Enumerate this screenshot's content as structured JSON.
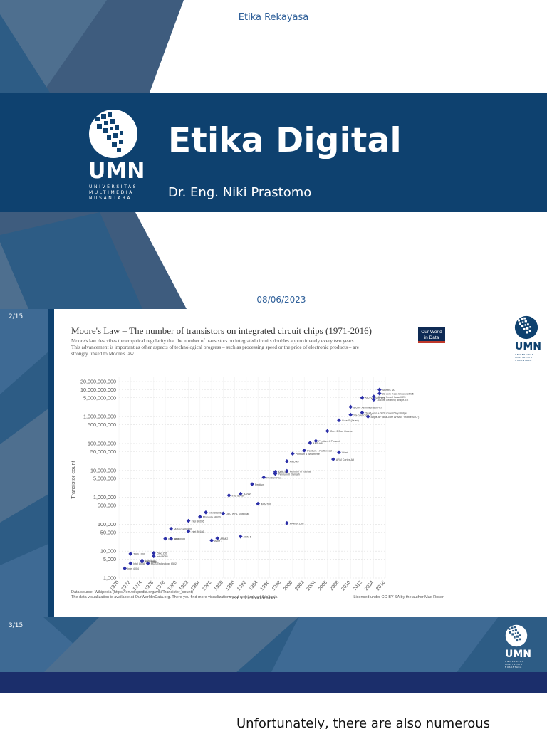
{
  "slide1": {
    "topic": "Etika Rekayasa",
    "title": "Etika Digital",
    "author": "Dr. Eng. Niki Prastomo",
    "date": "08/06/2023",
    "logo": {
      "word": "UMN",
      "line1": "UNIVERSITAS",
      "line2": "MULTIMEDIA",
      "line3": "NUSANTARA"
    }
  },
  "slide2": {
    "page_number": "2/15",
    "logo": {
      "word": "UMN",
      "line1": "UNIVERSITAS",
      "line2": "MULTIMEDIA",
      "line3": "NUSANTARA"
    },
    "badge": {
      "line1": "Our World",
      "line2": "in Data"
    },
    "source_line1": "Data source: Wikipedia (https://en.wikipedia.org/wiki/Transistor_count)",
    "source_line2": "The data visualization is available at OurWorldinData.org. There you find more visualizations and research on this topic.",
    "license": "Licensed under CC-BY-SA by the author Max Roser."
  },
  "slide3": {
    "page_number": "3/15",
    "logo": {
      "word": "UMN",
      "line1": "UNIVERSITAS",
      "line2": "MULTIMEDIA",
      "line3": "NUSANTARA"
    },
    "text": "Unfortunately, there are also numerous"
  },
  "colors": {
    "navy": "#0E416F",
    "steel": "#2D5C85",
    "slate": "#4E6F8F",
    "point": "#2B2FA8",
    "accent": "#C0392B"
  },
  "chart_data": {
    "type": "scatter",
    "title": "Moore's Law – The number of transistors on integrated circuit chips (1971-2016)",
    "subtitle_lines": [
      "Moore's law describes the empirical regularity that the number of transistors on integrated circuits doubles approximately every two years.",
      "This advancement is important as other aspects of technological progress – such as processing speed or the price of electronic products – are",
      "strongly linked to Moore's law."
    ],
    "xlabel": "Year of introduction",
    "ylabel": "Transistor count",
    "yscale": "log",
    "xlim": [
      1970,
      2016
    ],
    "ylim": [
      1000,
      20000000000
    ],
    "x_ticks": [
      1970,
      1972,
      1974,
      1976,
      1978,
      1980,
      1982,
      1984,
      1986,
      1988,
      1990,
      1992,
      1994,
      1996,
      1998,
      2000,
      2002,
      2004,
      2006,
      2008,
      2010,
      2012,
      2014,
      2016
    ],
    "y_ticks": [
      {
        "v": 1000,
        "label": "1,000"
      },
      {
        "v": 5000,
        "label": "5,000"
      },
      {
        "v": 10000,
        "label": "10,000"
      },
      {
        "v": 50000,
        "label": "50,000"
      },
      {
        "v": 100000,
        "label": "100,000"
      },
      {
        "v": 500000,
        "label": "500,000"
      },
      {
        "v": 1000000,
        "label": "1,000,000"
      },
      {
        "v": 5000000,
        "label": "5,000,000"
      },
      {
        "v": 10000000,
        "label": "10,000,000"
      },
      {
        "v": 50000000,
        "label": "50,000,000"
      },
      {
        "v": 100000000,
        "label": "100,000,000"
      },
      {
        "v": 500000000,
        "label": "500,000,000"
      },
      {
        "v": 1000000000,
        "label": "1,000,000,000"
      },
      {
        "v": 5000000000,
        "label": "5,000,000,000"
      },
      {
        "v": 10000000000,
        "label": "10,000,000,000"
      },
      {
        "v": 20000000000,
        "label": "20,000,000,000"
      }
    ],
    "grid": true,
    "points": [
      {
        "x": 1971,
        "y": 2300,
        "label": "Intel 4004"
      },
      {
        "x": 1972,
        "y": 3500,
        "label": "Intel 8008"
      },
      {
        "x": 1972,
        "y": 8000,
        "label": "TMS 1000"
      },
      {
        "x": 1974,
        "y": 4500,
        "label": "Intel 8080"
      },
      {
        "x": 1974,
        "y": 4100,
        "label": "RCA 1802"
      },
      {
        "x": 1975,
        "y": 3510,
        "label": "MOS Technology 6502"
      },
      {
        "x": 1976,
        "y": 8500,
        "label": "Zilog Z80"
      },
      {
        "x": 1976,
        "y": 6500,
        "label": "Intel 8085"
      },
      {
        "x": 1978,
        "y": 29000,
        "label": "Intel 8086"
      },
      {
        "x": 1979,
        "y": 68000,
        "label": "Motorola 68000"
      },
      {
        "x": 1979,
        "y": 29000,
        "label": "Intel 8088"
      },
      {
        "x": 1982,
        "y": 55000,
        "label": "Intel 80186"
      },
      {
        "x": 1982,
        "y": 134000,
        "label": "Intel 80286"
      },
      {
        "x": 1984,
        "y": 190000,
        "label": "Motorola 68020"
      },
      {
        "x": 1985,
        "y": 275000,
        "label": "Intel 80386"
      },
      {
        "x": 1986,
        "y": 25000,
        "label": "ARM 1"
      },
      {
        "x": 1987,
        "y": 30000,
        "label": "ARM 2"
      },
      {
        "x": 1988,
        "y": 250000,
        "label": "DEC WRL MultiTitan"
      },
      {
        "x": 1989,
        "y": 1180000,
        "label": "Intel 80486"
      },
      {
        "x": 1991,
        "y": 35000,
        "label": "ARM 6"
      },
      {
        "x": 1991,
        "y": 1350000,
        "label": "R4000"
      },
      {
        "x": 1993,
        "y": 3100000,
        "label": "Pentium"
      },
      {
        "x": 1994,
        "y": 578000,
        "label": "ARM700"
      },
      {
        "x": 1995,
        "y": 5500000,
        "label": "Pentium Pro"
      },
      {
        "x": 1997,
        "y": 7500000,
        "label": "Pentium II Klamath"
      },
      {
        "x": 1997,
        "y": 8800000,
        "label": "AMD K6"
      },
      {
        "x": 1999,
        "y": 9500000,
        "label": "Pentium III Katmai"
      },
      {
        "x": 1999,
        "y": 22000000,
        "label": "AMD K7"
      },
      {
        "x": 1999,
        "y": 111000,
        "label": "ARM 9TDMI"
      },
      {
        "x": 2000,
        "y": 42000000,
        "label": "Pentium 4 Willamette"
      },
      {
        "x": 2002,
        "y": 55000000,
        "label": "Pentium 4 Northwood"
      },
      {
        "x": 2003,
        "y": 105900000,
        "label": "AMD K8"
      },
      {
        "x": 2004,
        "y": 125000000,
        "label": "Pentium 4 Prescott"
      },
      {
        "x": 2006,
        "y": 291000000,
        "label": "Core 2 Duo Conroe"
      },
      {
        "x": 2007,
        "y": 26000000,
        "label": "ARM Cortex-A9"
      },
      {
        "x": 2008,
        "y": 47000000,
        "label": "Atom"
      },
      {
        "x": 2008,
        "y": 731000000,
        "label": "Core i7 (Quad)"
      },
      {
        "x": 2010,
        "y": 1170000000,
        "label": "Six-core Core i7"
      },
      {
        "x": 2010,
        "y": 2300000000,
        "label": "8-core Xeon Nehalem-EX"
      },
      {
        "x": 2012,
        "y": 1400000000,
        "label": "Quad-core + GPU Core i7 Ivy Bridge"
      },
      {
        "x": 2012,
        "y": 5000000000,
        "label": "62-core Xeon Phi"
      },
      {
        "x": 2013,
        "y": 1000000000,
        "label": "Apple A7 (dual-core ARM64 \"mobile SoC\")"
      },
      {
        "x": 2014,
        "y": 5560000000,
        "label": "18-core Xeon Haswell-E5"
      },
      {
        "x": 2014,
        "y": 4300000000,
        "label": "15-core Xeon Ivy Bridge-EX"
      },
      {
        "x": 2015,
        "y": 7200000000,
        "label": "22-core Xeon Broadwell-E5"
      },
      {
        "x": 2015,
        "y": 10000000000,
        "label": "SPARC M7"
      }
    ]
  }
}
